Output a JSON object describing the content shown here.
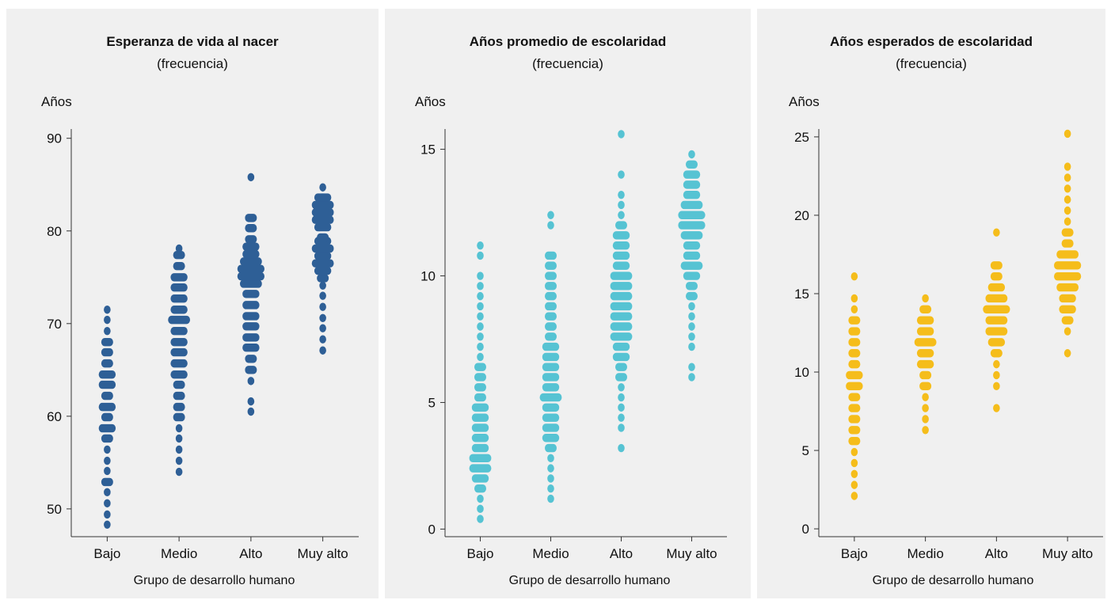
{
  "chart_data": [
    {
      "type": "scatter",
      "title": "Esperanza de vida al nacer",
      "subtitle": "(frecuencia)",
      "ylabel": "Años",
      "xlabel": "Grupo de desarrollo humano",
      "categories": [
        "Bajo",
        "Medio",
        "Alto",
        "Muy alto"
      ],
      "ylim": [
        47,
        91
      ],
      "yticks": [
        50,
        60,
        70,
        80,
        90
      ],
      "color": "#2e5f96",
      "bins": [
        [
          [
            48.3,
            1
          ],
          [
            49.4,
            1
          ],
          [
            50.6,
            1
          ],
          [
            51.8,
            1
          ],
          [
            52.9,
            2
          ],
          [
            54.1,
            1
          ],
          [
            55.2,
            1
          ],
          [
            56.4,
            1
          ],
          [
            57.6,
            2
          ],
          [
            58.7,
            3
          ],
          [
            59.9,
            2
          ],
          [
            61.0,
            3
          ],
          [
            62.2,
            2
          ],
          [
            63.4,
            3
          ],
          [
            64.5,
            3
          ],
          [
            65.7,
            2
          ],
          [
            66.9,
            2
          ],
          [
            68.0,
            2
          ],
          [
            69.2,
            1
          ],
          [
            70.4,
            1
          ],
          [
            71.5,
            1
          ]
        ],
        [
          [
            54.0,
            1
          ],
          [
            55.2,
            1
          ],
          [
            56.4,
            1
          ],
          [
            57.6,
            1
          ],
          [
            58.7,
            1
          ],
          [
            59.9,
            2
          ],
          [
            61.0,
            2
          ],
          [
            62.2,
            2
          ],
          [
            63.4,
            2
          ],
          [
            64.5,
            3
          ],
          [
            65.7,
            3
          ],
          [
            66.9,
            3
          ],
          [
            68.0,
            3
          ],
          [
            69.2,
            3
          ],
          [
            70.4,
            4
          ],
          [
            71.5,
            3
          ],
          [
            72.7,
            3
          ],
          [
            73.9,
            3
          ],
          [
            75.0,
            3
          ],
          [
            76.2,
            2
          ],
          [
            77.4,
            2
          ],
          [
            78.1,
            1
          ]
        ],
        [
          [
            60.5,
            1
          ],
          [
            61.6,
            1
          ],
          [
            63.8,
            1
          ],
          [
            65.0,
            2
          ],
          [
            66.2,
            2
          ],
          [
            67.4,
            3
          ],
          [
            68.5,
            3
          ],
          [
            69.7,
            3
          ],
          [
            70.8,
            3
          ],
          [
            72.0,
            3
          ],
          [
            73.2,
            3
          ],
          [
            74.3,
            4
          ],
          [
            75.1,
            5
          ],
          [
            75.9,
            5
          ],
          [
            76.7,
            4
          ],
          [
            77.5,
            3
          ],
          [
            78.3,
            3
          ],
          [
            79.1,
            2
          ],
          [
            80.3,
            2
          ],
          [
            81.4,
            2
          ],
          [
            85.8,
            1
          ]
        ],
        [
          [
            67.1,
            1
          ],
          [
            68.3,
            1
          ],
          [
            69.5,
            1
          ],
          [
            70.6,
            1
          ],
          [
            71.8,
            1
          ],
          [
            73.0,
            1
          ],
          [
            74.1,
            1
          ],
          [
            74.9,
            2
          ],
          [
            75.7,
            3
          ],
          [
            76.5,
            4
          ],
          [
            77.3,
            3
          ],
          [
            78.1,
            4
          ],
          [
            78.9,
            3
          ],
          [
            79.3,
            2
          ],
          [
            80.4,
            3
          ],
          [
            81.2,
            4
          ],
          [
            82.0,
            4
          ],
          [
            82.8,
            4
          ],
          [
            83.6,
            3
          ],
          [
            84.7,
            1
          ]
        ]
      ]
    },
    {
      "type": "scatter",
      "title": "Años promedio de escolaridad",
      "subtitle": "(frecuencia)",
      "ylabel": "Años",
      "xlabel": "Grupo de desarrollo humano",
      "categories": [
        "Bajo",
        "Medio",
        "Alto",
        "Muy alto"
      ],
      "ylim": [
        -0.3,
        15.8
      ],
      "yticks": [
        0,
        5,
        10,
        15
      ],
      "color": "#56c3d3",
      "bins": [
        [
          [
            0.4,
            1
          ],
          [
            0.8,
            1
          ],
          [
            1.2,
            1
          ],
          [
            1.6,
            2
          ],
          [
            2.0,
            3
          ],
          [
            2.4,
            4
          ],
          [
            2.8,
            4
          ],
          [
            3.2,
            3
          ],
          [
            3.6,
            3
          ],
          [
            4.0,
            3
          ],
          [
            4.4,
            3
          ],
          [
            4.8,
            3
          ],
          [
            5.2,
            2
          ],
          [
            5.6,
            2
          ],
          [
            6.0,
            2
          ],
          [
            6.4,
            2
          ],
          [
            6.8,
            1
          ],
          [
            7.2,
            1
          ],
          [
            7.6,
            1
          ],
          [
            8.0,
            1
          ],
          [
            8.4,
            1
          ],
          [
            8.8,
            1
          ],
          [
            9.2,
            1
          ],
          [
            9.6,
            1
          ],
          [
            10.0,
            1
          ],
          [
            10.8,
            1
          ],
          [
            11.2,
            1
          ]
        ],
        [
          [
            1.2,
            1
          ],
          [
            1.6,
            1
          ],
          [
            2.0,
            1
          ],
          [
            2.4,
            1
          ],
          [
            2.8,
            1
          ],
          [
            3.2,
            2
          ],
          [
            3.6,
            3
          ],
          [
            4.0,
            3
          ],
          [
            4.4,
            3
          ],
          [
            4.8,
            3
          ],
          [
            5.2,
            4
          ],
          [
            5.6,
            3
          ],
          [
            6.0,
            3
          ],
          [
            6.4,
            3
          ],
          [
            6.8,
            3
          ],
          [
            7.2,
            3
          ],
          [
            7.6,
            2
          ],
          [
            8.0,
            2
          ],
          [
            8.4,
            2
          ],
          [
            8.8,
            2
          ],
          [
            9.2,
            2
          ],
          [
            9.6,
            2
          ],
          [
            10.0,
            2
          ],
          [
            10.4,
            2
          ],
          [
            10.8,
            2
          ],
          [
            12.0,
            1
          ],
          [
            12.4,
            1
          ]
        ],
        [
          [
            3.2,
            1
          ],
          [
            4.0,
            1
          ],
          [
            4.4,
            1
          ],
          [
            4.8,
            1
          ],
          [
            5.2,
            1
          ],
          [
            5.6,
            1
          ],
          [
            6.0,
            2
          ],
          [
            6.4,
            2
          ],
          [
            6.8,
            3
          ],
          [
            7.2,
            3
          ],
          [
            7.6,
            4
          ],
          [
            8.0,
            4
          ],
          [
            8.4,
            4
          ],
          [
            8.8,
            4
          ],
          [
            9.2,
            4
          ],
          [
            9.6,
            4
          ],
          [
            10.0,
            4
          ],
          [
            10.4,
            3
          ],
          [
            10.8,
            3
          ],
          [
            11.2,
            3
          ],
          [
            11.6,
            3
          ],
          [
            12.0,
            2
          ],
          [
            12.4,
            1
          ],
          [
            12.8,
            1
          ],
          [
            13.2,
            1
          ],
          [
            14.0,
            1
          ],
          [
            15.6,
            1
          ]
        ],
        [
          [
            6.0,
            1
          ],
          [
            6.4,
            1
          ],
          [
            7.2,
            1
          ],
          [
            7.6,
            1
          ],
          [
            8.0,
            1
          ],
          [
            8.4,
            1
          ],
          [
            8.8,
            1
          ],
          [
            9.2,
            2
          ],
          [
            9.6,
            2
          ],
          [
            10.0,
            3
          ],
          [
            10.4,
            4
          ],
          [
            10.8,
            3
          ],
          [
            11.2,
            3
          ],
          [
            11.6,
            4
          ],
          [
            12.0,
            5
          ],
          [
            12.4,
            5
          ],
          [
            12.8,
            4
          ],
          [
            13.2,
            3
          ],
          [
            13.6,
            3
          ],
          [
            14.0,
            3
          ],
          [
            14.4,
            2
          ],
          [
            14.8,
            1
          ]
        ]
      ]
    },
    {
      "type": "scatter",
      "title": "Años esperados de escolaridad",
      "subtitle": "(frecuencia)",
      "ylabel": "Años",
      "xlabel": "Grupo de desarrollo humano",
      "categories": [
        "Bajo",
        "Medio",
        "Alto",
        "Muy alto"
      ],
      "ylim": [
        -0.5,
        25.5
      ],
      "yticks": [
        0,
        5,
        10,
        15,
        20,
        25
      ],
      "color": "#f5bd1b",
      "bins": [
        [
          [
            2.1,
            1
          ],
          [
            2.8,
            1
          ],
          [
            3.5,
            1
          ],
          [
            4.2,
            1
          ],
          [
            4.9,
            1
          ],
          [
            5.6,
            2
          ],
          [
            6.3,
            2
          ],
          [
            7.0,
            2
          ],
          [
            7.7,
            2
          ],
          [
            8.4,
            2
          ],
          [
            9.1,
            3
          ],
          [
            9.8,
            3
          ],
          [
            10.5,
            2
          ],
          [
            11.2,
            2
          ],
          [
            11.9,
            2
          ],
          [
            12.6,
            2
          ],
          [
            13.3,
            2
          ],
          [
            14.0,
            1
          ],
          [
            14.7,
            1
          ],
          [
            16.1,
            1
          ]
        ],
        [
          [
            6.3,
            1
          ],
          [
            7.0,
            1
          ],
          [
            7.7,
            1
          ],
          [
            8.4,
            1
          ],
          [
            9.1,
            2
          ],
          [
            9.8,
            2
          ],
          [
            10.5,
            3
          ],
          [
            11.2,
            3
          ],
          [
            11.9,
            4
          ],
          [
            12.6,
            3
          ],
          [
            13.3,
            3
          ],
          [
            14.0,
            2
          ],
          [
            14.7,
            1
          ]
        ],
        [
          [
            7.7,
            1
          ],
          [
            9.1,
            1
          ],
          [
            9.8,
            1
          ],
          [
            10.5,
            1
          ],
          [
            11.2,
            2
          ],
          [
            11.9,
            3
          ],
          [
            12.6,
            4
          ],
          [
            13.3,
            4
          ],
          [
            14.0,
            5
          ],
          [
            14.7,
            4
          ],
          [
            15.4,
            3
          ],
          [
            16.1,
            2
          ],
          [
            16.8,
            2
          ],
          [
            18.9,
            1
          ]
        ],
        [
          [
            11.2,
            1
          ],
          [
            12.6,
            1
          ],
          [
            13.3,
            2
          ],
          [
            14.0,
            3
          ],
          [
            14.7,
            3
          ],
          [
            15.4,
            4
          ],
          [
            16.1,
            5
          ],
          [
            16.8,
            5
          ],
          [
            17.5,
            4
          ],
          [
            18.2,
            2
          ],
          [
            18.9,
            2
          ],
          [
            19.6,
            1
          ],
          [
            20.3,
            1
          ],
          [
            21.0,
            1
          ],
          [
            21.7,
            1
          ],
          [
            22.4,
            1
          ],
          [
            23.1,
            1
          ],
          [
            25.2,
            1
          ]
        ]
      ]
    }
  ]
}
